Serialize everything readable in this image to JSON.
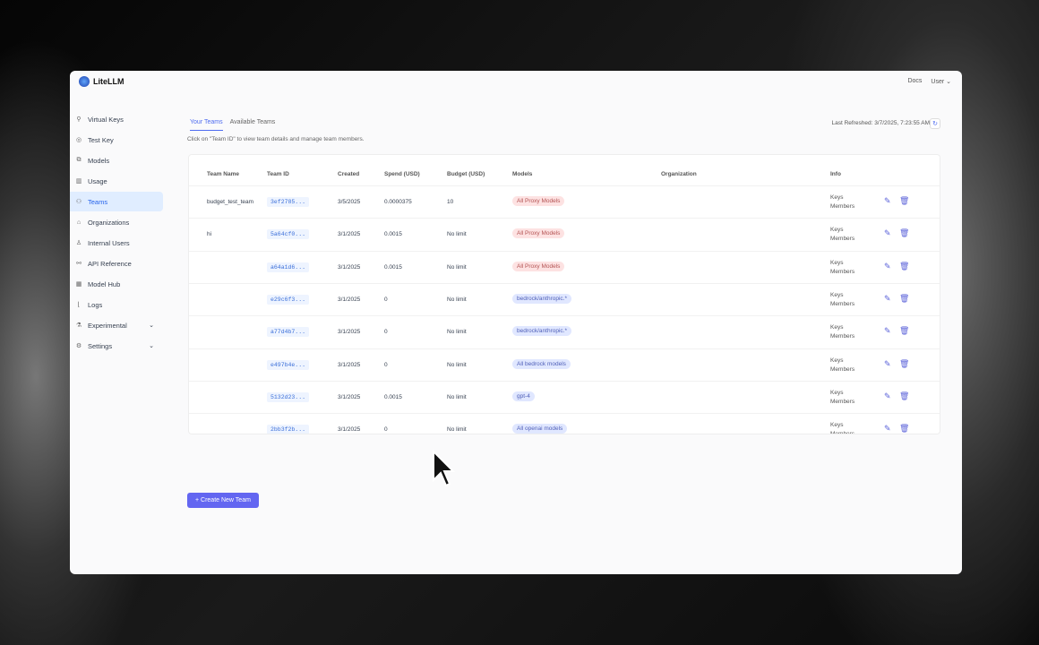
{
  "app": {
    "name": "LiteLLM",
    "docs": "Docs",
    "user": "User"
  },
  "sidebar": {
    "items": [
      {
        "label": "Virtual Keys",
        "icon": "key-icon"
      },
      {
        "label": "Test Key",
        "icon": "play-circle-icon"
      },
      {
        "label": "Models",
        "icon": "blocks-icon"
      },
      {
        "label": "Usage",
        "icon": "bar-chart-icon"
      },
      {
        "label": "Teams",
        "icon": "team-icon",
        "active": true
      },
      {
        "label": "Organizations",
        "icon": "bank-icon"
      },
      {
        "label": "Internal Users",
        "icon": "user-icon"
      },
      {
        "label": "API Reference",
        "icon": "api-icon"
      },
      {
        "label": "Model Hub",
        "icon": "apps-icon"
      },
      {
        "label": "Logs",
        "icon": "line-chart-icon"
      },
      {
        "label": "Experimental",
        "icon": "flask-icon",
        "expandable": true
      },
      {
        "label": "Settings",
        "icon": "gear-icon",
        "expandable": true
      }
    ]
  },
  "main": {
    "tabs": [
      {
        "label": "Your Teams",
        "active": true
      },
      {
        "label": "Available Teams"
      }
    ],
    "hint": "Click on \"Team ID\" to view team details and manage team members.",
    "last_refreshed": "Last Refreshed: 3/7/2025, 7:23:55 AM",
    "columns": [
      "Team Name",
      "Team ID",
      "Created",
      "Spend (USD)",
      "Budget (USD)",
      "Models",
      "Organization",
      "Info"
    ],
    "rows": [
      {
        "name": "budget_test_team",
        "id": "3ef2785...",
        "created": "3/5/2025",
        "spend": "0.0000375",
        "budget": "10",
        "model": "All Proxy Models",
        "model_color": "red",
        "info1": "Keys",
        "info2": "Members"
      },
      {
        "name": "hi",
        "id": "5a64cf0...",
        "created": "3/1/2025",
        "spend": "0.0015",
        "budget": "No limit",
        "model": "All Proxy Models",
        "model_color": "red",
        "info1": "Keys",
        "info2": "Members"
      },
      {
        "name": "",
        "id": "a64a1d6...",
        "created": "3/1/2025",
        "spend": "0.0015",
        "budget": "No limit",
        "model": "All Proxy Models",
        "model_color": "red",
        "info1": "Keys",
        "info2": "Members"
      },
      {
        "name": "",
        "id": "e29c6f3...",
        "created": "3/1/2025",
        "spend": "0",
        "budget": "No limit",
        "model": "bedrock/anthropic.*",
        "model_color": "blue",
        "info1": "Keys",
        "info2": "Members"
      },
      {
        "name": "",
        "id": "a77d4b7...",
        "created": "3/1/2025",
        "spend": "0",
        "budget": "No limit",
        "model": "bedrock/anthropic.*",
        "model_color": "blue",
        "info1": "Keys",
        "info2": "Members"
      },
      {
        "name": "",
        "id": "e497b4e...",
        "created": "3/1/2025",
        "spend": "0",
        "budget": "No limit",
        "model": "All bedrock models",
        "model_color": "blue",
        "info1": "Keys",
        "info2": "Members"
      },
      {
        "name": "",
        "id": "5132d23...",
        "created": "3/1/2025",
        "spend": "0.0015",
        "budget": "No limit",
        "model": "gpt-4",
        "model_color": "blue",
        "info1": "Keys",
        "info2": "Members"
      },
      {
        "name": "",
        "id": "2bb3f2b...",
        "created": "3/1/2025",
        "spend": "0",
        "budget": "No limit",
        "model": "All openai models",
        "model_color": "blue",
        "info1": "Keys",
        "info2": "Members"
      }
    ],
    "create_button": "+ Create New Team"
  }
}
